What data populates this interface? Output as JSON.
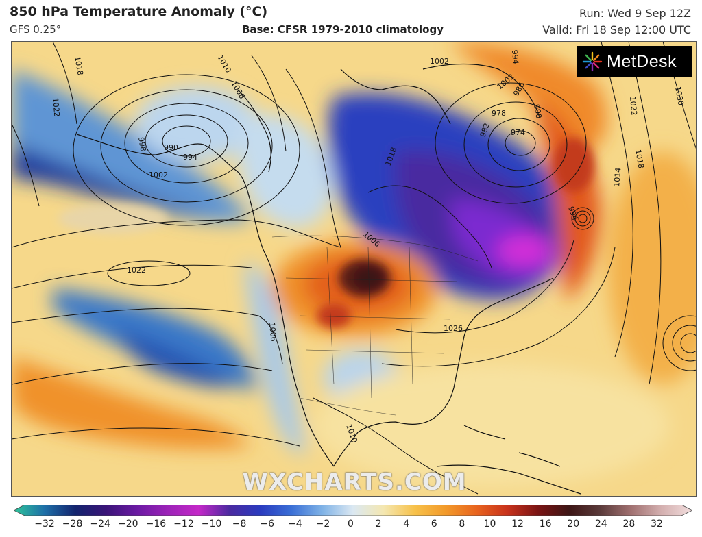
{
  "header": {
    "title": "850 hPa Temperature Anomaly (°C)",
    "model": "GFS 0.25°",
    "base": "Base: CFSR 1979-2010 climatology",
    "run": "Run: Wed 9 Sep 12Z",
    "valid": "Valid: Fri 18 Sep 12:00 UTC"
  },
  "logo": {
    "text": "MetDesk",
    "icon": "starburst-logo-icon"
  },
  "watermark": "WXCHARTS.COM",
  "isobar_labels": [
    "1018",
    "1022",
    "1010",
    "1006",
    "1002",
    "998",
    "990",
    "994",
    "1002",
    "994",
    "1002",
    "978",
    "982",
    "974",
    "986",
    "990",
    "1030",
    "1022",
    "1018",
    "1014",
    "994",
    "1018",
    "1006",
    "1022",
    "1026",
    "1006",
    "1010"
  ],
  "colorbar": {
    "ticks": [
      "−32",
      "−28",
      "−24",
      "−20",
      "−16",
      "−12",
      "−10",
      "−8",
      "−6",
      "−4",
      "−2",
      "0",
      "2",
      "4",
      "6",
      "8",
      "10",
      "12",
      "16",
      "20",
      "24",
      "28",
      "32"
    ],
    "colors": [
      "#2ec49a",
      "#1e6fa8",
      "#13246e",
      "#3a1478",
      "#6b1aa3",
      "#9c23b8",
      "#c428c8",
      "#4a2aa0",
      "#2a3bbf",
      "#3a6fd6",
      "#7fb2e6",
      "#dbe8f2",
      "#f4e7b0",
      "#f7c14a",
      "#f29a2a",
      "#e8641e",
      "#c8321c",
      "#7a1414",
      "#3d1515",
      "#5a3a3a",
      "#a07070",
      "#d4b0b0",
      "#f2dede"
    ]
  },
  "colors": {
    "background_warm": "#f7d98c",
    "cold_deep": "#13246e",
    "cold_purple": "#7b2bd0",
    "cold_magenta": "#d52fd8",
    "warm_orange": "#ee8a2a",
    "warm_red": "#c33b1c",
    "warm_dark": "#3b1616"
  }
}
